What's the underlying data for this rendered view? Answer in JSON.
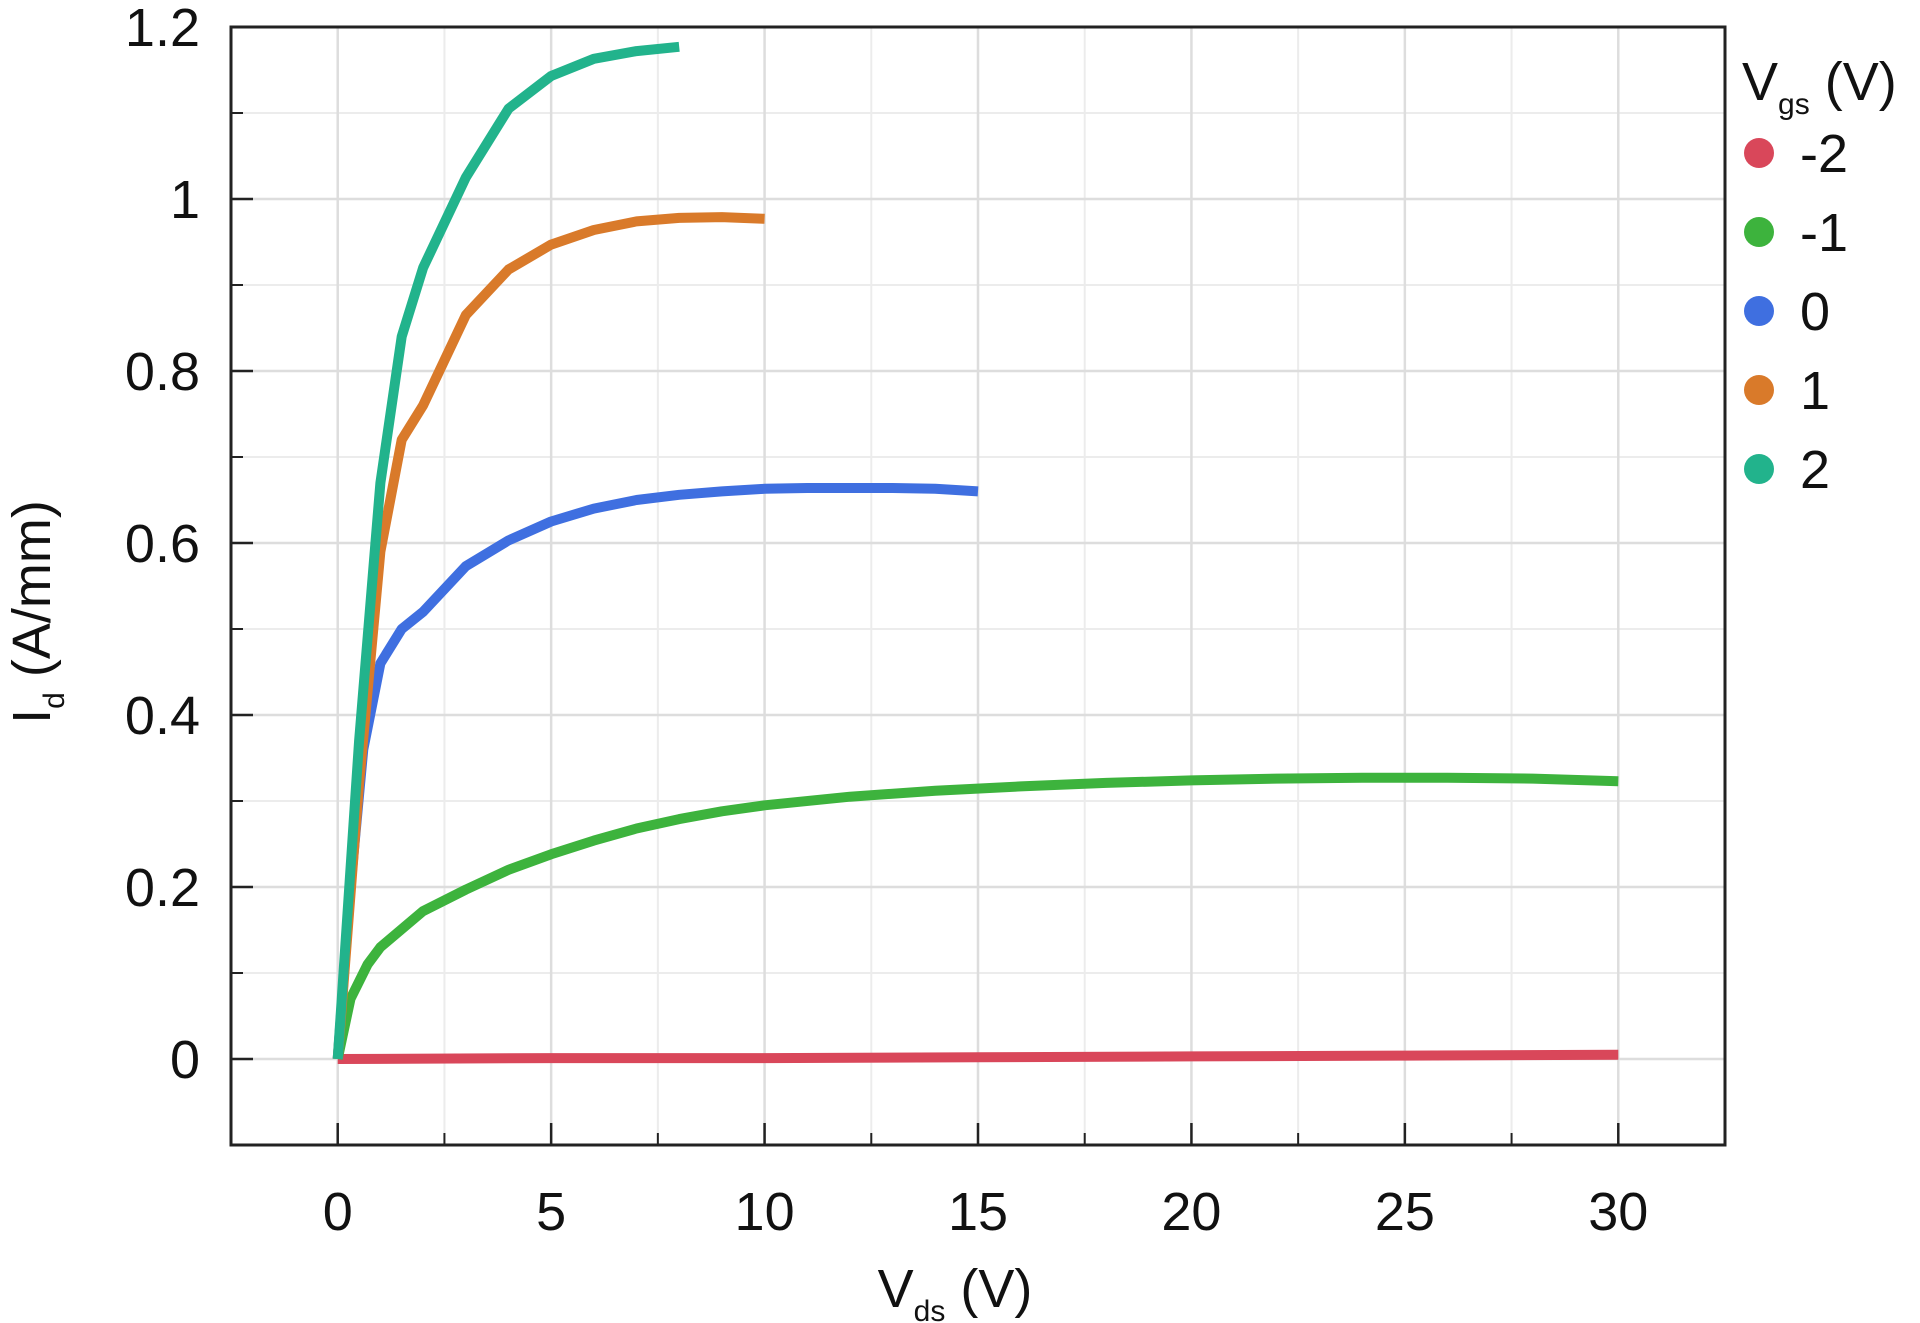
{
  "chart_data": {
    "type": "line",
    "xlabel": {
      "main": "V",
      "sub": "ds",
      "unit": " (V)"
    },
    "ylabel": {
      "main": "I",
      "sub": "d",
      "unit": " (A/mm)"
    },
    "xlim": [
      -2.5,
      32.5
    ],
    "ylim": [
      -0.1,
      1.2
    ],
    "xticks": [
      0,
      5,
      10,
      15,
      20,
      25,
      30
    ],
    "yticks": [
      0,
      0.2,
      0.4,
      0.6,
      0.8,
      1,
      1.2
    ],
    "xtick_labels": [
      "0",
      "5",
      "10",
      "15",
      "20",
      "25",
      "30"
    ],
    "ytick_labels": [
      "0",
      "0.2",
      "0.4",
      "0.6",
      "0.8",
      "1",
      "1.2"
    ],
    "grid": true,
    "legend": {
      "title": {
        "main": "V",
        "sub": "gs",
        "unit": " (V)"
      },
      "placement": "outside-right-top"
    },
    "series": [
      {
        "name": "-2",
        "color": "#d9475a",
        "points": [
          [
            0,
            0
          ],
          [
            5,
            0.001
          ],
          [
            10,
            0.001
          ],
          [
            15,
            0.002
          ],
          [
            20,
            0.003
          ],
          [
            25,
            0.004
          ],
          [
            30,
            0.005
          ]
        ]
      },
      {
        "name": "-1",
        "color": "#3db33d",
        "points": [
          [
            0,
            0
          ],
          [
            0.3,
            0.07
          ],
          [
            0.7,
            0.11
          ],
          [
            1,
            0.13
          ],
          [
            2,
            0.172
          ],
          [
            3,
            0.197
          ],
          [
            4,
            0.22
          ],
          [
            5,
            0.238
          ],
          [
            6,
            0.254
          ],
          [
            7,
            0.268
          ],
          [
            8,
            0.279
          ],
          [
            9,
            0.288
          ],
          [
            10,
            0.295
          ],
          [
            12,
            0.305
          ],
          [
            14,
            0.312
          ],
          [
            16,
            0.317
          ],
          [
            18,
            0.321
          ],
          [
            20,
            0.324
          ],
          [
            22,
            0.326
          ],
          [
            24,
            0.327
          ],
          [
            26,
            0.327
          ],
          [
            28,
            0.326
          ],
          [
            30,
            0.323
          ]
        ]
      },
      {
        "name": "0",
        "color": "#3f6fe0",
        "points": [
          [
            0,
            0
          ],
          [
            0.3,
            0.2
          ],
          [
            0.6,
            0.36
          ],
          [
            1,
            0.46
          ],
          [
            1.5,
            0.5
          ],
          [
            2,
            0.52
          ],
          [
            3,
            0.573
          ],
          [
            4,
            0.603
          ],
          [
            5,
            0.625
          ],
          [
            6,
            0.64
          ],
          [
            7,
            0.65
          ],
          [
            8,
            0.656
          ],
          [
            9,
            0.66
          ],
          [
            10,
            0.663
          ],
          [
            11,
            0.664
          ],
          [
            12,
            0.664
          ],
          [
            13,
            0.664
          ],
          [
            14,
            0.663
          ],
          [
            15,
            0.66
          ]
        ]
      },
      {
        "name": "1",
        "color": "#d97a2a",
        "points": [
          [
            0,
            0
          ],
          [
            0.5,
            0.32
          ],
          [
            1,
            0.59
          ],
          [
            1.5,
            0.72
          ],
          [
            2,
            0.76
          ],
          [
            3,
            0.865
          ],
          [
            4,
            0.918
          ],
          [
            5,
            0.947
          ],
          [
            6,
            0.964
          ],
          [
            7,
            0.974
          ],
          [
            8,
            0.978
          ],
          [
            9,
            0.979
          ],
          [
            10,
            0.977
          ]
        ]
      },
      {
        "name": "2",
        "color": "#22b38c",
        "points": [
          [
            0,
            0
          ],
          [
            0.5,
            0.37
          ],
          [
            1,
            0.67
          ],
          [
            1.5,
            0.84
          ],
          [
            2,
            0.92
          ],
          [
            3,
            1.025
          ],
          [
            4,
            1.105
          ],
          [
            5,
            1.143
          ],
          [
            6,
            1.163
          ],
          [
            7,
            1.172
          ],
          [
            8,
            1.177
          ]
        ]
      }
    ]
  }
}
